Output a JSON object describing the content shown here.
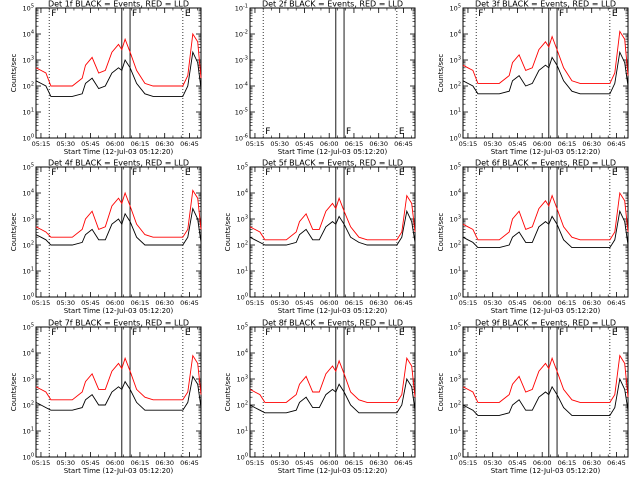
{
  "figure": {
    "title_format": "BLACK = Events, RED = LLD",
    "ylabel": "Counts/sec",
    "xlabel": "Start Time (12-Jul-03 05:12:20)",
    "xtick_labels": [
      "05:15",
      "05:30",
      "05:45",
      "06:00",
      "06:15",
      "06:30",
      "06:45"
    ],
    "ytick_labels": [
      "10^0",
      "10^1",
      "10^2",
      "10^3",
      "10^4",
      "10^5"
    ],
    "ytick_labels_det2": [
      "10^-6",
      "10^-5",
      "10^-4",
      "10^-3",
      "10^-2",
      "10^-1"
    ],
    "colors": {
      "events": "#000000",
      "lld": "#ff0000"
    }
  },
  "chart_data": [
    {
      "type": "line",
      "title": "Det 1f BLACK = Events, RED = LLD",
      "xlabel": "Start Time (12-Jul-03 05:12:20)",
      "ylabel": "Counts/sec",
      "xlim": [
        0,
        100
      ],
      "ylim": [
        0,
        5
      ],
      "flag_labels": [
        "F",
        "F",
        "E"
      ],
      "vlines": {
        "dotted": [
          8,
          89
        ],
        "solid": [
          52,
          57
        ]
      },
      "x": [
        0,
        3,
        6,
        9,
        13,
        22,
        28,
        30,
        34,
        38,
        42,
        46,
        50,
        52,
        54,
        57,
        61,
        66,
        71,
        76,
        81,
        85,
        88,
        89,
        92,
        95,
        98,
        100
      ],
      "series": [
        {
          "name": "Events",
          "values": [
            2.2,
            2.1,
            2.0,
            1.6,
            1.6,
            1.6,
            1.7,
            2.1,
            2.3,
            1.9,
            2.0,
            2.5,
            2.7,
            2.6,
            3.0,
            2.7,
            2.1,
            1.7,
            1.6,
            1.6,
            1.6,
            1.6,
            1.6,
            1.6,
            2.0,
            3.3,
            2.9,
            1.9
          ]
        },
        {
          "name": "LLD",
          "values": [
            2.7,
            2.6,
            2.5,
            2.0,
            2.0,
            2.0,
            2.3,
            2.8,
            3.1,
            2.5,
            2.6,
            3.3,
            3.6,
            3.4,
            3.8,
            3.3,
            2.6,
            2.1,
            2.0,
            2.0,
            2.0,
            2.0,
            2.0,
            2.0,
            2.4,
            4.0,
            3.7,
            2.3
          ]
        }
      ]
    },
    {
      "type": "line",
      "title": "Det 2f BLACK = Events, RED = LLD",
      "xlabel": "Start Time (12-Jul-03 05:12:20)",
      "ylabel": "",
      "xlim": [
        0,
        100
      ],
      "ylim": [
        -6,
        -1
      ],
      "flag_labels": [
        "F",
        "F",
        "E"
      ],
      "vlines": {
        "dotted": [
          8,
          89
        ],
        "solid": [
          52,
          57
        ]
      },
      "x": [],
      "series": [
        {
          "name": "Events",
          "values": []
        },
        {
          "name": "LLD",
          "values": []
        }
      ]
    },
    {
      "type": "line",
      "title": "Det 3f BLACK = Events, RED = LLD",
      "xlabel": "Start Time (12-Jul-03 05:12:20)",
      "ylabel": "Counts/sec",
      "xlim": [
        0,
        100
      ],
      "ylim": [
        0,
        5
      ],
      "flag_labels": [
        "F",
        "F",
        "E"
      ],
      "vlines": {
        "dotted": [
          8,
          89
        ],
        "solid": [
          52,
          57
        ]
      },
      "x": [
        0,
        3,
        6,
        9,
        13,
        22,
        28,
        30,
        34,
        38,
        42,
        46,
        50,
        52,
        54,
        57,
        61,
        66,
        71,
        76,
        81,
        85,
        88,
        89,
        92,
        95,
        98,
        100
      ],
      "series": [
        {
          "name": "Events",
          "values": [
            2.2,
            2.1,
            2.0,
            1.7,
            1.7,
            1.7,
            1.8,
            2.2,
            2.4,
            2.0,
            2.1,
            2.6,
            2.8,
            2.7,
            3.1,
            2.8,
            2.2,
            1.8,
            1.7,
            1.7,
            1.7,
            1.7,
            1.7,
            1.7,
            2.1,
            3.3,
            2.9,
            2.0
          ]
        },
        {
          "name": "LLD",
          "values": [
            2.8,
            2.7,
            2.6,
            2.1,
            2.1,
            2.1,
            2.4,
            2.9,
            3.2,
            2.6,
            2.7,
            3.4,
            3.7,
            3.5,
            3.9,
            3.4,
            2.7,
            2.2,
            2.1,
            2.1,
            2.1,
            2.1,
            2.1,
            2.1,
            2.5,
            4.1,
            3.8,
            2.4
          ]
        }
      ]
    },
    {
      "type": "line",
      "title": "Det 4f BLACK = Events, RED = LLD",
      "xlabel": "Start Time (12-Jul-03 05:12:20)",
      "ylabel": "Counts/sec",
      "xlim": [
        0,
        100
      ],
      "ylim": [
        0,
        5
      ],
      "flag_labels": [
        "F",
        "F",
        "E"
      ],
      "vlines": {
        "dotted": [
          8,
          89
        ],
        "solid": [
          52,
          57
        ]
      },
      "x": [
        0,
        3,
        6,
        9,
        13,
        22,
        28,
        30,
        34,
        38,
        42,
        46,
        50,
        52,
        54,
        57,
        61,
        66,
        71,
        76,
        81,
        85,
        88,
        89,
        92,
        95,
        98,
        100
      ],
      "series": [
        {
          "name": "Events",
          "values": [
            2.4,
            2.3,
            2.2,
            2.0,
            2.0,
            2.0,
            2.1,
            2.4,
            2.6,
            2.2,
            2.2,
            2.8,
            3.0,
            2.8,
            3.2,
            2.9,
            2.3,
            2.0,
            2.0,
            2.0,
            2.0,
            2.0,
            2.0,
            2.0,
            2.3,
            3.4,
            3.0,
            2.1
          ]
        },
        {
          "name": "LLD",
          "values": [
            2.7,
            2.6,
            2.5,
            2.3,
            2.3,
            2.3,
            2.6,
            3.0,
            3.3,
            2.6,
            2.7,
            3.5,
            3.8,
            3.6,
            4.0,
            3.5,
            2.8,
            2.4,
            2.3,
            2.3,
            2.3,
            2.3,
            2.3,
            2.3,
            2.6,
            4.1,
            3.8,
            2.6
          ]
        }
      ]
    },
    {
      "type": "line",
      "title": "Det 5f BLACK = Events, RED = LLD",
      "xlabel": "Start Time (12-Jul-03 05:12:20)",
      "ylabel": "Counts/sec",
      "xlim": [
        0,
        100
      ],
      "ylim": [
        0,
        5
      ],
      "flag_labels": [
        "F",
        "F",
        "E"
      ],
      "vlines": {
        "dotted": [
          8,
          89
        ],
        "solid": [
          52,
          57
        ]
      },
      "x": [
        0,
        3,
        6,
        9,
        13,
        22,
        28,
        30,
        34,
        38,
        42,
        46,
        50,
        52,
        54,
        57,
        61,
        66,
        71,
        76,
        81,
        85,
        88,
        89,
        92,
        95,
        98,
        100
      ],
      "series": [
        {
          "name": "Events",
          "values": [
            2.3,
            2.2,
            2.1,
            2.0,
            2.0,
            2.0,
            2.1,
            2.4,
            2.6,
            2.2,
            2.2,
            2.7,
            2.9,
            2.8,
            3.1,
            2.8,
            2.3,
            2.1,
            2.0,
            2.0,
            2.0,
            2.0,
            2.0,
            2.0,
            2.3,
            3.3,
            2.9,
            2.1
          ]
        },
        {
          "name": "LLD",
          "values": [
            2.7,
            2.6,
            2.5,
            2.2,
            2.2,
            2.2,
            2.5,
            2.9,
            3.2,
            2.6,
            2.6,
            3.3,
            3.6,
            3.4,
            3.8,
            3.3,
            2.7,
            2.3,
            2.2,
            2.2,
            2.2,
            2.2,
            2.2,
            2.2,
            2.5,
            3.9,
            3.6,
            2.5
          ]
        }
      ]
    },
    {
      "type": "line",
      "title": "Det 6f BLACK = Events, RED = LLD",
      "xlabel": "Start Time (12-Jul-03 05:12:20)",
      "ylabel": "Counts/sec",
      "xlim": [
        0,
        100
      ],
      "ylim": [
        0,
        5
      ],
      "flag_labels": [
        "F",
        "F",
        "E"
      ],
      "vlines": {
        "dotted": [
          8,
          89
        ],
        "solid": [
          52,
          57
        ]
      },
      "x": [
        0,
        3,
        6,
        9,
        13,
        22,
        28,
        30,
        34,
        38,
        42,
        46,
        50,
        52,
        54,
        57,
        61,
        66,
        71,
        76,
        81,
        85,
        88,
        89,
        92,
        95,
        98,
        100
      ],
      "series": [
        {
          "name": "Events",
          "values": [
            2.3,
            2.2,
            2.1,
            1.9,
            1.9,
            1.9,
            2.0,
            2.3,
            2.5,
            2.1,
            2.1,
            2.7,
            2.9,
            2.8,
            3.1,
            2.8,
            2.2,
            1.9,
            1.9,
            1.9,
            1.9,
            1.9,
            1.9,
            1.9,
            2.2,
            3.3,
            2.9,
            2.0
          ]
        },
        {
          "name": "LLD",
          "values": [
            2.8,
            2.7,
            2.6,
            2.2,
            2.2,
            2.2,
            2.5,
            3.0,
            3.3,
            2.6,
            2.7,
            3.4,
            3.7,
            3.5,
            3.9,
            3.4,
            2.7,
            2.3,
            2.2,
            2.2,
            2.2,
            2.2,
            2.2,
            2.2,
            2.5,
            4.0,
            3.7,
            2.5
          ]
        }
      ]
    },
    {
      "type": "line",
      "title": "Det 7f BLACK = Events, RED = LLD",
      "xlabel": "Start Time (12-Jul-03 05:12:20)",
      "ylabel": "Counts/sec",
      "xlim": [
        0,
        100
      ],
      "ylim": [
        0,
        5
      ],
      "flag_labels": [
        "F",
        "F",
        "E"
      ],
      "vlines": {
        "dotted": [
          8,
          89
        ],
        "solid": [
          52,
          57
        ]
      },
      "x": [
        0,
        3,
        6,
        9,
        13,
        22,
        28,
        30,
        34,
        38,
        42,
        46,
        50,
        52,
        54,
        57,
        61,
        66,
        71,
        76,
        81,
        85,
        88,
        89,
        92,
        95,
        98,
        100
      ],
      "series": [
        {
          "name": "Events",
          "values": [
            2.1,
            2.0,
            1.9,
            1.8,
            1.8,
            1.8,
            1.9,
            2.2,
            2.4,
            2.0,
            2.0,
            2.5,
            2.7,
            2.6,
            2.9,
            2.6,
            2.1,
            1.8,
            1.8,
            1.8,
            1.8,
            1.8,
            1.8,
            1.8,
            2.1,
            3.1,
            2.8,
            1.9
          ]
        },
        {
          "name": "LLD",
          "values": [
            2.7,
            2.6,
            2.5,
            2.2,
            2.2,
            2.2,
            2.5,
            2.9,
            3.2,
            2.6,
            2.6,
            3.3,
            3.6,
            3.4,
            3.8,
            3.3,
            2.6,
            2.3,
            2.2,
            2.2,
            2.2,
            2.2,
            2.2,
            2.2,
            2.5,
            3.9,
            3.6,
            2.4
          ]
        }
      ]
    },
    {
      "type": "line",
      "title": "Det 8f BLACK = Events, RED = LLD",
      "xlabel": "Start Time (12-Jul-03 05:12:20)",
      "ylabel": "Counts/sec",
      "xlim": [
        0,
        100
      ],
      "ylim": [
        0,
        5
      ],
      "flag_labels": [
        "F",
        "F",
        "E"
      ],
      "vlines": {
        "dotted": [
          8,
          89
        ],
        "solid": [
          52,
          57
        ]
      },
      "x": [
        0,
        3,
        6,
        9,
        13,
        22,
        28,
        30,
        34,
        38,
        42,
        46,
        50,
        52,
        54,
        57,
        61,
        66,
        71,
        76,
        81,
        85,
        88,
        89,
        92,
        95,
        98,
        100
      ],
      "series": [
        {
          "name": "Events",
          "values": [
            2.0,
            1.9,
            1.8,
            1.7,
            1.7,
            1.7,
            1.8,
            2.1,
            2.3,
            1.9,
            1.9,
            2.4,
            2.6,
            2.5,
            2.8,
            2.5,
            2.0,
            1.7,
            1.7,
            1.7,
            1.7,
            1.7,
            1.7,
            1.7,
            2.0,
            3.0,
            2.7,
            1.8
          ]
        },
        {
          "name": "LLD",
          "values": [
            2.6,
            2.5,
            2.4,
            2.1,
            2.1,
            2.1,
            2.4,
            2.8,
            3.1,
            2.5,
            2.5,
            3.2,
            3.5,
            3.3,
            3.7,
            3.2,
            2.5,
            2.2,
            2.1,
            2.1,
            2.1,
            2.1,
            2.1,
            2.1,
            2.4,
            3.8,
            3.5,
            2.3
          ]
        }
      ]
    },
    {
      "type": "line",
      "title": "Det 9f BLACK = Events, RED = LLD",
      "xlabel": "Start Time (12-Jul-03 05:12:20)",
      "ylabel": "Counts/sec",
      "xlim": [
        0,
        100
      ],
      "ylim": [
        0,
        5
      ],
      "flag_labels": [
        "F",
        "F",
        "E"
      ],
      "vlines": {
        "dotted": [
          8,
          89
        ],
        "solid": [
          52,
          57
        ]
      },
      "x": [
        0,
        3,
        6,
        9,
        13,
        22,
        28,
        30,
        34,
        38,
        42,
        46,
        50,
        52,
        54,
        57,
        61,
        66,
        71,
        76,
        81,
        85,
        88,
        89,
        92,
        95,
        98,
        100
      ],
      "series": [
        {
          "name": "Events",
          "values": [
            2.0,
            1.9,
            1.8,
            1.6,
            1.6,
            1.6,
            1.7,
            2.0,
            2.2,
            1.8,
            1.8,
            2.3,
            2.5,
            2.4,
            2.7,
            2.4,
            1.9,
            1.6,
            1.6,
            1.6,
            1.6,
            1.6,
            1.6,
            1.6,
            1.9,
            3.0,
            2.6,
            1.8
          ]
        },
        {
          "name": "LLD",
          "values": [
            2.7,
            2.6,
            2.5,
            2.1,
            2.1,
            2.1,
            2.4,
            2.8,
            3.1,
            2.5,
            2.6,
            3.3,
            3.6,
            3.4,
            3.8,
            3.3,
            2.6,
            2.2,
            2.1,
            2.1,
            2.1,
            2.1,
            2.1,
            2.1,
            2.4,
            3.9,
            3.6,
            2.3
          ]
        }
      ]
    }
  ]
}
